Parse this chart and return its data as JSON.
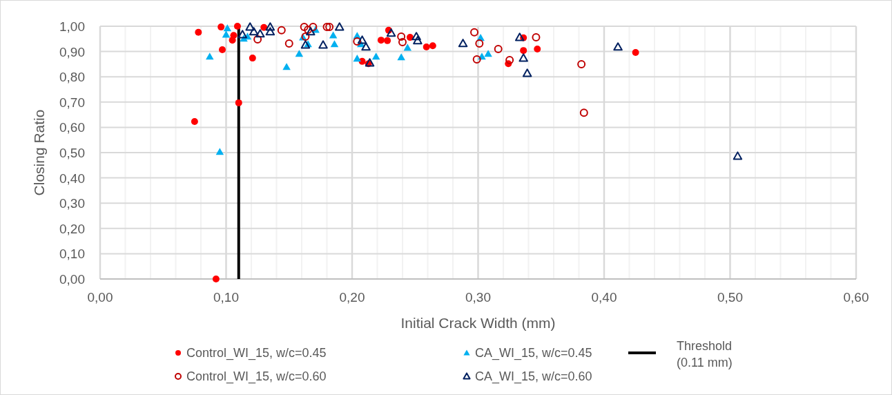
{
  "chart_data": {
    "type": "scatter",
    "xlabel": "Initial Crack Width (mm)",
    "ylabel": "Closing Ratio",
    "xlim": [
      0,
      0.6
    ],
    "ylim": [
      0,
      1
    ],
    "xticks": [
      {
        "value": 0,
        "label": "0,00"
      },
      {
        "value": 0.02,
        "label": null
      },
      {
        "value": 0.04,
        "label": null
      },
      {
        "value": 0.06,
        "label": null
      },
      {
        "value": 0.08,
        "label": null
      },
      {
        "value": 0.1,
        "label": "0,10"
      },
      {
        "value": 0.12,
        "label": null
      },
      {
        "value": 0.14,
        "label": null
      },
      {
        "value": 0.16,
        "label": null
      },
      {
        "value": 0.18,
        "label": null
      },
      {
        "value": 0.2,
        "label": "0,20"
      },
      {
        "value": 0.22,
        "label": null
      },
      {
        "value": 0.24,
        "label": null
      },
      {
        "value": 0.26,
        "label": null
      },
      {
        "value": 0.28,
        "label": null
      },
      {
        "value": 0.3,
        "label": "0,30"
      },
      {
        "value": 0.32,
        "label": null
      },
      {
        "value": 0.34,
        "label": null
      },
      {
        "value": 0.36,
        "label": null
      },
      {
        "value": 0.38,
        "label": null
      },
      {
        "value": 0.4,
        "label": "0,40"
      },
      {
        "value": 0.42,
        "label": null
      },
      {
        "value": 0.44,
        "label": null
      },
      {
        "value": 0.46,
        "label": null
      },
      {
        "value": 0.48,
        "label": null
      },
      {
        "value": 0.5,
        "label": "0,50"
      },
      {
        "value": 0.52,
        "label": null
      },
      {
        "value": 0.54,
        "label": null
      },
      {
        "value": 0.56,
        "label": null
      },
      {
        "value": 0.58,
        "label": null
      },
      {
        "value": 0.6,
        "label": "0,60"
      }
    ],
    "yticks": [
      {
        "value": 0,
        "label": "0,00"
      },
      {
        "value": 0.1,
        "label": "0,10"
      },
      {
        "value": 0.2,
        "label": "0,20"
      },
      {
        "value": 0.3,
        "label": "0,30"
      },
      {
        "value": 0.4,
        "label": "0,40"
      },
      {
        "value": 0.5,
        "label": "0,50"
      },
      {
        "value": 0.6,
        "label": "0,60"
      },
      {
        "value": 0.7,
        "label": "0,70"
      },
      {
        "value": 0.8,
        "label": "0,80"
      },
      {
        "value": 0.9,
        "label": "0,90"
      },
      {
        "value": 1,
        "label": "1,00"
      }
    ],
    "grid": true,
    "legend": "bottom",
    "series": [
      {
        "name": "Control_WI_15, w/c=0.45",
        "color": "#ff0000",
        "marker": "circle",
        "x": [
          0.078,
          0.075,
          0.096,
          0.109,
          0.106,
          0.105,
          0.097,
          0.121,
          0.11,
          0.092,
          0.13,
          0.229,
          0.223,
          0.228,
          0.246,
          0.259,
          0.264,
          0.208,
          0.213,
          0.324,
          0.336,
          0.336,
          0.347,
          0.425
        ],
        "values": [
          0.976,
          0.623,
          0.997,
          1.0,
          0.964,
          0.945,
          0.907,
          0.874,
          0.697,
          0.0,
          0.995,
          0.984,
          0.945,
          0.943,
          0.956,
          0.918,
          0.923,
          0.861,
          0.852,
          0.852,
          0.954,
          0.904,
          0.91,
          0.896
        ]
      },
      {
        "name": "CA_WI_15, w/c=0.45",
        "color": "#00b0f0",
        "marker": "triangle",
        "x": [
          0.087,
          0.095,
          0.101,
          0.1,
          0.114,
          0.117,
          0.148,
          0.158,
          0.161,
          0.165,
          0.171,
          0.185,
          0.186,
          0.204,
          0.204,
          0.207,
          0.219,
          0.239,
          0.244,
          0.302,
          0.303,
          0.308
        ],
        "values": [
          0.88,
          0.503,
          0.992,
          0.967,
          0.951,
          0.959,
          0.839,
          0.891,
          0.956,
          0.929,
          0.986,
          0.964,
          0.929,
          0.962,
          0.872,
          0.929,
          0.88,
          0.877,
          0.915,
          0.954,
          0.88,
          0.891
        ]
      },
      {
        "name": "Threshold (0.11 mm)",
        "color": "#000000",
        "type": "line",
        "marker": "none",
        "x": [
          0.11,
          0.11
        ],
        "values": [
          0,
          1
        ]
      },
      {
        "name": "Control_WI_15, w/c=0.60",
        "color": "#c00000",
        "marker": "circle",
        "x": [
          0.125,
          0.144,
          0.15,
          0.162,
          0.165,
          0.163,
          0.169,
          0.18,
          0.182,
          0.204,
          0.239,
          0.24,
          0.297,
          0.301,
          0.299,
          0.316,
          0.325,
          0.346,
          0.382,
          0.384
        ],
        "values": [
          0.948,
          0.984,
          0.932,
          0.997,
          0.986,
          0.959,
          0.997,
          0.997,
          0.997,
          0.94,
          0.959,
          0.937,
          0.976,
          0.932,
          0.869,
          0.91,
          0.866,
          0.956,
          0.85,
          0.658
        ]
      },
      {
        "name": "CA_WI_15, w/c=0.60",
        "color": "#002060",
        "marker": "triangle",
        "x": [
          0.113,
          0.119,
          0.122,
          0.127,
          0.135,
          0.135,
          0.163,
          0.167,
          0.177,
          0.19,
          0.208,
          0.211,
          0.214,
          0.231,
          0.251,
          0.252,
          0.288,
          0.333,
          0.336,
          0.339,
          0.411,
          0.506
        ],
        "values": [
          0.967,
          0.997,
          0.978,
          0.97,
          0.997,
          0.978,
          0.926,
          0.978,
          0.926,
          0.997,
          0.945,
          0.918,
          0.855,
          0.973,
          0.959,
          0.943,
          0.932,
          0.956,
          0.874,
          0.814,
          0.918,
          0.486
        ]
      }
    ]
  }
}
